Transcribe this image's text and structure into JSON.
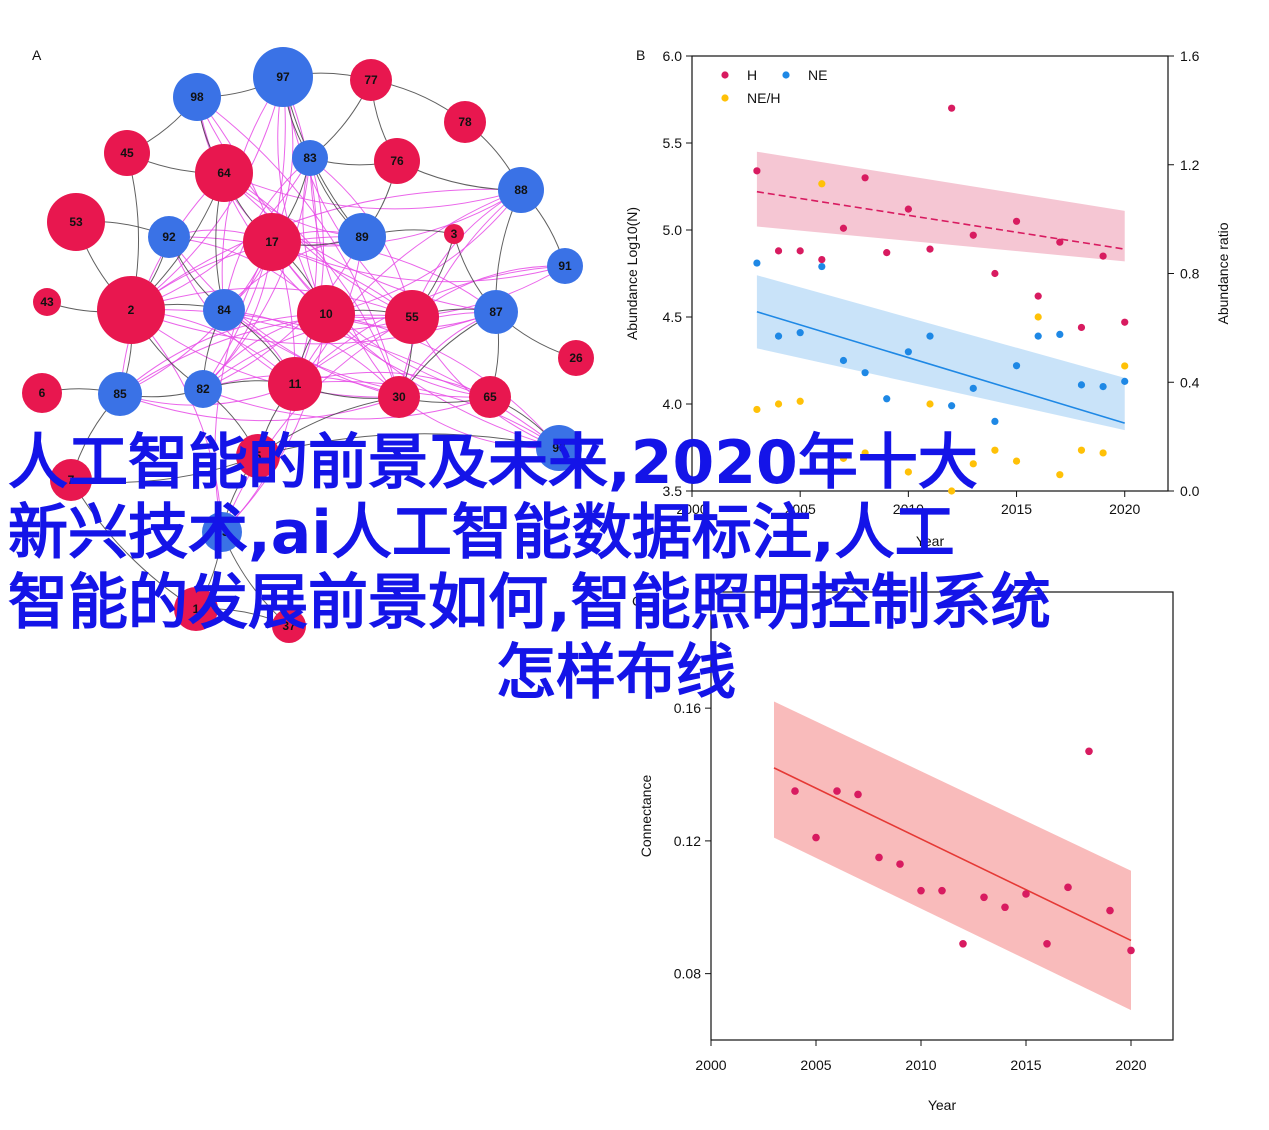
{
  "overlay_title": {
    "line1": "人工智能的前景及未来,2020年十大",
    "line2": "新兴技术,ai人工智能数据标注,人工",
    "line3": "智能的发展前景如何,智能照明控制系统",
    "line4": "怎样布线"
  },
  "colors": {
    "red_node": "#e8174f",
    "blue_node": "#3a72e6",
    "edge_pink": "#e64ae6",
    "edge_gray": "#444444",
    "h": "#d81b60",
    "ne": "#1e88e5",
    "ne_h": "#ffc107",
    "h_band": "#f2b8c8",
    "ne_band": "#bcdcf7",
    "c_points": "#d81b60",
    "c_line": "#e53935",
    "c_band": "#f8b4b4"
  },
  "chart_data": [
    {
      "type": "network",
      "panel": "A",
      "nodes": [
        {
          "id": "97",
          "group": "blue"
        },
        {
          "id": "77",
          "group": "red"
        },
        {
          "id": "98",
          "group": "blue"
        },
        {
          "id": "78",
          "group": "red"
        },
        {
          "id": "45",
          "group": "red"
        },
        {
          "id": "83",
          "group": "blue"
        },
        {
          "id": "76",
          "group": "red"
        },
        {
          "id": "64",
          "group": "red"
        },
        {
          "id": "88",
          "group": "blue"
        },
        {
          "id": "53",
          "group": "red"
        },
        {
          "id": "92",
          "group": "blue"
        },
        {
          "id": "17",
          "group": "red"
        },
        {
          "id": "89",
          "group": "blue"
        },
        {
          "id": "3",
          "group": "red"
        },
        {
          "id": "91",
          "group": "blue"
        },
        {
          "id": "43",
          "group": "red"
        },
        {
          "id": "2",
          "group": "red"
        },
        {
          "id": "84",
          "group": "blue"
        },
        {
          "id": "10",
          "group": "red"
        },
        {
          "id": "55",
          "group": "red"
        },
        {
          "id": "87",
          "group": "blue"
        },
        {
          "id": "26",
          "group": "red"
        },
        {
          "id": "6",
          "group": "red"
        },
        {
          "id": "85",
          "group": "blue"
        },
        {
          "id": "82",
          "group": "blue"
        },
        {
          "id": "11",
          "group": "red"
        },
        {
          "id": "30",
          "group": "red"
        },
        {
          "id": "65",
          "group": "red"
        },
        {
          "id": "96",
          "group": "blue"
        },
        {
          "id": "7",
          "group": "red"
        },
        {
          "id": "5",
          "group": "red"
        },
        {
          "id": "93",
          "group": "blue"
        },
        {
          "id": "1",
          "group": "red"
        },
        {
          "id": "37",
          "group": "red"
        }
      ]
    },
    {
      "type": "scatter",
      "panel": "B",
      "xlabel": "Year",
      "ylabel": "Abundance Log10(N)",
      "y2label": "Abundance ratio",
      "xlim": [
        2000,
        2022
      ],
      "ylim": [
        3.5,
        6.0
      ],
      "y2lim": [
        0.0,
        1.6
      ],
      "xticks": [
        "2000",
        "2005",
        "2010",
        "2015",
        "2020"
      ],
      "yticks": [
        "6.0",
        "5.5",
        "5.0",
        "4.5",
        "4.0",
        "3.5"
      ],
      "y2ticks": [
        "1.6",
        "1.2",
        "0.8",
        "0.4",
        "0.0"
      ],
      "legend": [
        "H",
        "NE",
        "NE/H"
      ],
      "series": [
        {
          "name": "H",
          "axis": "left",
          "x": [
            2003,
            2004,
            2005,
            2006,
            2007,
            2008,
            2009,
            2010,
            2011,
            2012,
            2013,
            2014,
            2015,
            2016,
            2017,
            2018,
            2019,
            2020
          ],
          "y": [
            5.34,
            4.88,
            4.88,
            4.83,
            5.01,
            5.3,
            4.87,
            5.12,
            4.89,
            5.7,
            4.97,
            4.75,
            5.05,
            4.62,
            4.93,
            4.44,
            4.85,
            4.47
          ]
        },
        {
          "name": "NE",
          "axis": "left",
          "x": [
            2003,
            2004,
            2005,
            2006,
            2007,
            2008,
            2009,
            2010,
            2011,
            2012,
            2013,
            2014,
            2015,
            2016,
            2017,
            2018,
            2019,
            2020
          ],
          "y": [
            4.81,
            4.39,
            4.41,
            4.79,
            4.25,
            4.18,
            4.03,
            4.3,
            4.39,
            3.99,
            4.09,
            3.9,
            4.22,
            4.39,
            4.4,
            4.11,
            4.1,
            4.13
          ]
        },
        {
          "name": "NE/H",
          "axis": "right",
          "x": [
            2003,
            2004,
            2005,
            2006,
            2007,
            2008,
            2009,
            2010,
            2011,
            2012,
            2013,
            2014,
            2015,
            2016,
            2017,
            2018,
            2019,
            2020
          ],
          "y": [
            0.3,
            0.32,
            0.33,
            1.13,
            0.12,
            0.14,
            0.12,
            0.07,
            0.32,
            0.0,
            0.1,
            0.15,
            0.11,
            0.64,
            0.06,
            0.15,
            0.14,
            0.46
          ]
        }
      ],
      "fits": [
        {
          "series": "H",
          "x": [
            2003,
            2020
          ],
          "y": [
            5.22,
            4.89
          ],
          "ci_low": [
            5.02,
            4.82
          ],
          "ci_high": [
            5.45,
            5.11
          ]
        },
        {
          "series": "NE",
          "x": [
            2003,
            2020
          ],
          "y": [
            4.53,
            3.89
          ],
          "ci_low": [
            4.32,
            3.85
          ],
          "ci_high": [
            4.74,
            4.15
          ]
        }
      ]
    },
    {
      "type": "scatter",
      "panel": "C",
      "xlabel": "Year",
      "ylabel": "Connectance",
      "xlim": [
        2000,
        2022
      ],
      "ylim": [
        0.06,
        0.195
      ],
      "xticks": [
        "2000",
        "2005",
        "2010",
        "2015",
        "2020"
      ],
      "yticks": [
        "0.16",
        "0.12",
        "0.08"
      ],
      "series": [
        {
          "name": "",
          "x": [
            2004,
            2005,
            2006,
            2007,
            2008,
            2009,
            2010,
            2011,
            2012,
            2013,
            2014,
            2015,
            2016,
            2017,
            2018,
            2019,
            2020
          ],
          "y": [
            0.135,
            0.121,
            0.135,
            0.134,
            0.115,
            0.113,
            0.105,
            0.105,
            0.089,
            0.103,
            0.1,
            0.104,
            0.089,
            0.106,
            0.147,
            0.099,
            0.087
          ]
        }
      ],
      "fits": [
        {
          "x": [
            2003,
            2020
          ],
          "y": [
            0.142,
            0.09
          ],
          "ci_low": [
            0.121,
            0.069
          ],
          "ci_high": [
            0.162,
            0.111
          ]
        }
      ]
    }
  ]
}
